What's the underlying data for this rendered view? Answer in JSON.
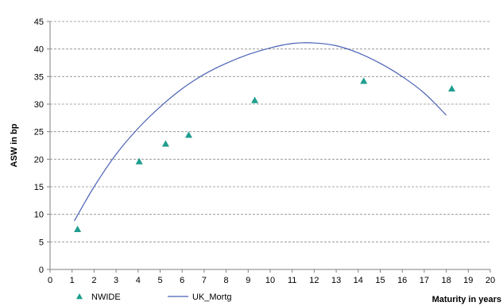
{
  "chart_data": {
    "type": "scatter",
    "title": "",
    "xlabel": "Maturity in years",
    "ylabel": "ASW in bp",
    "xlim": [
      0,
      20
    ],
    "ylim": [
      0,
      45
    ],
    "x_ticks": [
      0,
      1,
      2,
      3,
      4,
      5,
      6,
      7,
      8,
      9,
      10,
      11,
      12,
      13,
      14,
      15,
      16,
      17,
      18,
      19,
      20
    ],
    "y_ticks": [
      0,
      5,
      10,
      15,
      20,
      25,
      30,
      35,
      40,
      45
    ],
    "grid": "horizontal dashed",
    "legend": "bottom-left",
    "series": [
      {
        "name": "NWIDE",
        "kind": "scatter",
        "marker": "triangle",
        "color": "#1f9e8e",
        "points": [
          {
            "x": 1.25,
            "y": 7.3
          },
          {
            "x": 4.05,
            "y": 19.6
          },
          {
            "x": 5.25,
            "y": 22.8
          },
          {
            "x": 6.3,
            "y": 24.4
          },
          {
            "x": 9.3,
            "y": 30.7
          },
          {
            "x": 14.25,
            "y": 34.2
          },
          {
            "x": 18.25,
            "y": 32.8
          }
        ]
      },
      {
        "name": "UK_Mortg",
        "kind": "line",
        "color": "#4a62b5",
        "points": [
          {
            "x": 1.1,
            "y": 8.8
          },
          {
            "x": 2,
            "y": 15.0
          },
          {
            "x": 3,
            "y": 20.9
          },
          {
            "x": 4,
            "y": 25.6
          },
          {
            "x": 5,
            "y": 29.5
          },
          {
            "x": 6,
            "y": 32.8
          },
          {
            "x": 7,
            "y": 35.4
          },
          {
            "x": 8,
            "y": 37.4
          },
          {
            "x": 9,
            "y": 39.0
          },
          {
            "x": 10,
            "y": 40.2
          },
          {
            "x": 11,
            "y": 41.0
          },
          {
            "x": 12,
            "y": 41.1
          },
          {
            "x": 13,
            "y": 40.6
          },
          {
            "x": 14,
            "y": 39.3
          },
          {
            "x": 15,
            "y": 37.4
          },
          {
            "x": 16,
            "y": 35.0
          },
          {
            "x": 17,
            "y": 32.0
          },
          {
            "x": 18,
            "y": 28.0
          }
        ]
      }
    ]
  }
}
